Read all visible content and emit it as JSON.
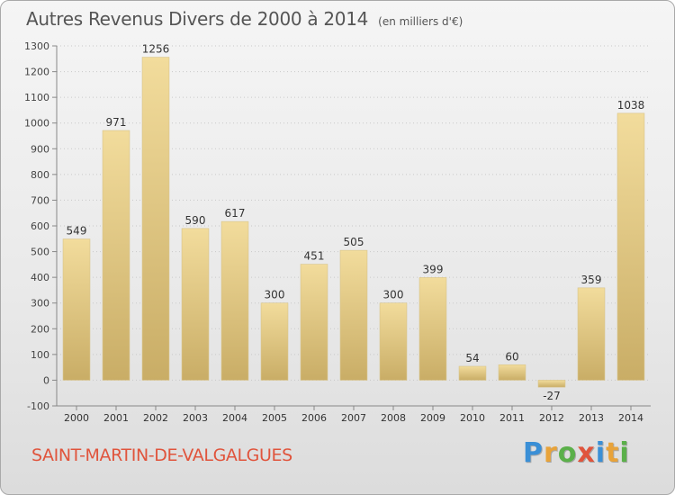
{
  "header": {
    "title": "Autres Revenus Divers de 2000 à 2014",
    "unit": "(en milliers d'€)"
  },
  "footer": {
    "commune": "SAINT-MARTIN-DE-VALGALGUES",
    "logo_letters": [
      "P",
      "r",
      "o",
      "x",
      "i",
      "t",
      "i"
    ],
    "logo_colors": [
      "#3a8fd6",
      "#e8a33a",
      "#5bb04a",
      "#e0543c",
      "#3a8fd6",
      "#e8a33a",
      "#5bb04a"
    ]
  },
  "chart_data": {
    "type": "bar",
    "categories": [
      "2000",
      "2001",
      "2002",
      "2003",
      "2004",
      "2005",
      "2006",
      "2007",
      "2008",
      "2009",
      "2010",
      "2011",
      "2012",
      "2013",
      "2014"
    ],
    "values": [
      549,
      971,
      1256,
      590,
      617,
      300,
      451,
      505,
      300,
      399,
      54,
      60,
      -27,
      359,
      1038
    ],
    "data_labels": [
      "549",
      "971",
      "1256",
      "590",
      "617",
      "300",
      "451",
      "505",
      "300",
      "399",
      "54",
      "60",
      "-27",
      "359",
      "1038"
    ],
    "ylim": [
      -100,
      1300
    ],
    "yticks": [
      -100,
      0,
      100,
      200,
      300,
      400,
      500,
      600,
      700,
      800,
      900,
      1000,
      1100,
      1200,
      1300
    ],
    "grid": true,
    "bar_color_light": "#f2dc9c",
    "bar_color_dark": "#c9ad66"
  }
}
